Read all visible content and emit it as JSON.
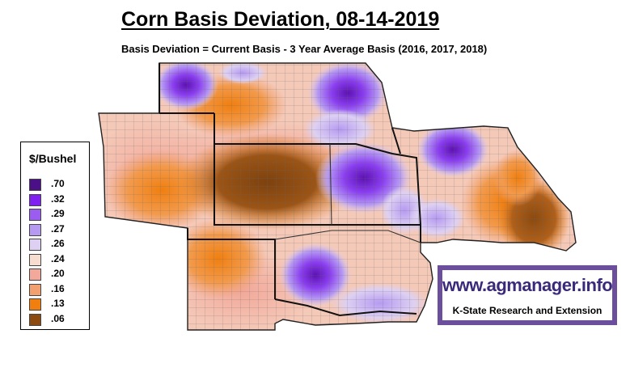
{
  "title": "Corn Basis Deviation, 08-14-2019",
  "subtitle": "Basis Deviation = Current Basis - 3 Year Average Basis (2016, 2017, 2018)",
  "legend": {
    "title": "$/Bushel",
    "items": [
      {
        "label": ".70",
        "color": "#4b0f86"
      },
      {
        "label": ".32",
        "color": "#7f1ff0"
      },
      {
        "label": ".29",
        "color": "#9b5cf0"
      },
      {
        "label": ".27",
        "color": "#b69af2"
      },
      {
        "label": ".26",
        "color": "#ddd0f2"
      },
      {
        "label": ".24",
        "color": "#f7ddd0"
      },
      {
        "label": ".20",
        "color": "#f2a89a"
      },
      {
        "label": ".16",
        "color": "#f2a070"
      },
      {
        "label": ".13",
        "color": "#f07f10"
      },
      {
        "label": ".06",
        "color": "#8a4a10"
      }
    ]
  },
  "logo": {
    "url": "www.agmanager.info",
    "tagline": "K-State Research and Extension"
  }
}
